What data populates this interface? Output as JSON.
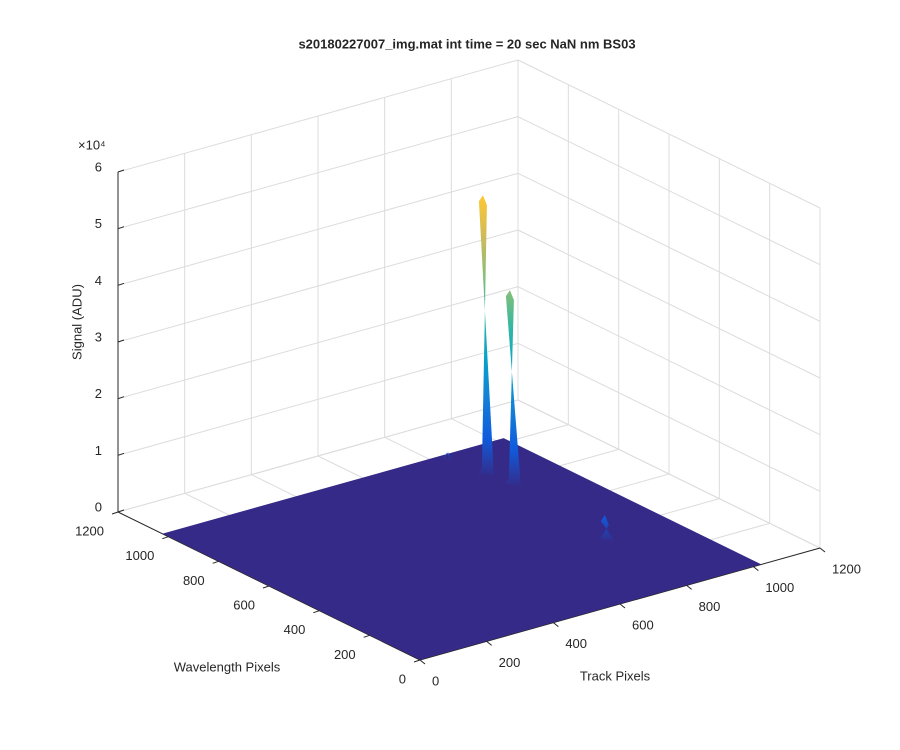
{
  "chart_data": {
    "type": "surface",
    "title": "s20180227007_img.mat int time = 20 sec  NaN nm BS03",
    "xlabel": "Track Pixels",
    "ylabel": "Wavelength Pixels",
    "zlabel": "Signal (ADU)",
    "zexponent_label": "×10⁴",
    "xlim": [
      0,
      1200
    ],
    "xticks": [
      0,
      200,
      400,
      600,
      800,
      1000,
      1200
    ],
    "ylim": [
      0,
      1200
    ],
    "yticks": [
      0,
      200,
      400,
      600,
      800,
      1000,
      1200
    ],
    "zlim": [
      0,
      60000
    ],
    "zticks": [
      0,
      {
        "value": 10000,
        "label": "1"
      },
      {
        "value": 20000,
        "label": "2"
      },
      {
        "value": 30000,
        "label": "3"
      },
      {
        "value": 40000,
        "label": "4"
      },
      {
        "value": 50000,
        "label": "5"
      },
      {
        "value": 60000,
        "label": "6"
      }
    ],
    "grid": true,
    "color": "#352a87",
    "surface_xrange": [
      1,
      1024
    ],
    "surface_yrange": [
      1,
      1024
    ],
    "peaks": [
      {
        "track": 860,
        "wavelength": 889,
        "signal": 48500
      },
      {
        "track": 873,
        "wavelength": 799,
        "signal": 33500
      },
      {
        "track": 840,
        "wavelength": 378,
        "signal": 3500
      },
      {
        "track": 852,
        "wavelength": 1017,
        "signal": 500
      }
    ]
  }
}
